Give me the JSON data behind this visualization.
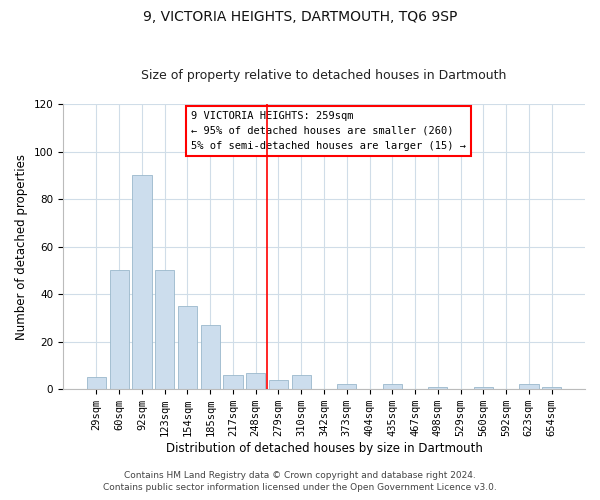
{
  "title": "9, VICTORIA HEIGHTS, DARTMOUTH, TQ6 9SP",
  "subtitle": "Size of property relative to detached houses in Dartmouth",
  "xlabel": "Distribution of detached houses by size in Dartmouth",
  "ylabel": "Number of detached properties",
  "bar_labels": [
    "29sqm",
    "60sqm",
    "92sqm",
    "123sqm",
    "154sqm",
    "185sqm",
    "217sqm",
    "248sqm",
    "279sqm",
    "310sqm",
    "342sqm",
    "373sqm",
    "404sqm",
    "435sqm",
    "467sqm",
    "498sqm",
    "529sqm",
    "560sqm",
    "592sqm",
    "623sqm",
    "654sqm"
  ],
  "bar_values": [
    5,
    50,
    90,
    50,
    35,
    27,
    6,
    7,
    4,
    6,
    0,
    2,
    0,
    2,
    0,
    1,
    0,
    1,
    0,
    2,
    1
  ],
  "bar_color": "#ccdded",
  "bar_edge_color": "#9ab8cc",
  "ylim": [
    0,
    120
  ],
  "yticks": [
    0,
    20,
    40,
    60,
    80,
    100,
    120
  ],
  "annotation_lines": [
    "9 VICTORIA HEIGHTS: 259sqm",
    "← 95% of detached houses are smaller (260)",
    "5% of semi-detached houses are larger (15) →"
  ],
  "footer_line1": "Contains HM Land Registry data © Crown copyright and database right 2024.",
  "footer_line2": "Contains public sector information licensed under the Open Government Licence v3.0.",
  "bg_color": "#ffffff",
  "plot_bg_color": "#ffffff",
  "grid_color": "#d0dde8",
  "title_fontsize": 10,
  "subtitle_fontsize": 9,
  "axis_label_fontsize": 8.5,
  "tick_fontsize": 7.5,
  "footer_fontsize": 6.5,
  "red_line_x": 7.5
}
